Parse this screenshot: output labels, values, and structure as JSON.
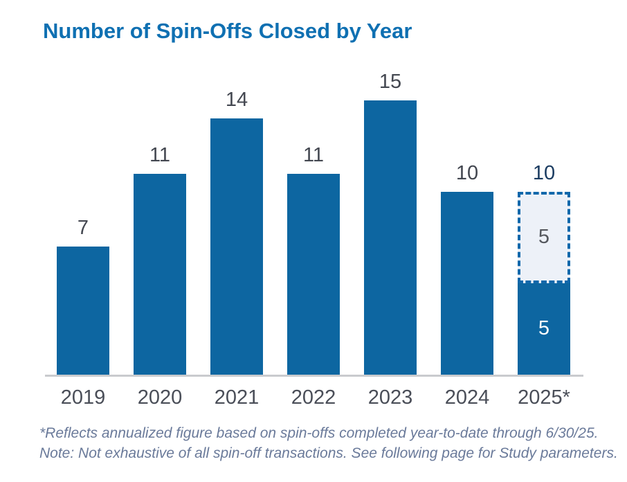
{
  "title": "Number of Spin-Offs Closed by Year",
  "chart_data": {
    "type": "bar",
    "title": "Number of Spin-Offs Closed by Year",
    "categories": [
      "2019",
      "2020",
      "2021",
      "2022",
      "2023",
      "2024",
      "2025*"
    ],
    "values": [
      7,
      11,
      14,
      11,
      15,
      10,
      10
    ],
    "xlabel": "",
    "ylabel": "",
    "ylim": [
      0,
      16
    ],
    "grid": false,
    "legend": false,
    "bars": [
      {
        "category": "2019",
        "label": "7",
        "label_style": "gray",
        "segments": [
          {
            "value": 7,
            "style": "solid"
          }
        ]
      },
      {
        "category": "2020",
        "label": "11",
        "label_style": "gray",
        "segments": [
          {
            "value": 11,
            "style": "solid"
          }
        ]
      },
      {
        "category": "2021",
        "label": "14",
        "label_style": "gray",
        "segments": [
          {
            "value": 14,
            "style": "solid"
          }
        ]
      },
      {
        "category": "2022",
        "label": "11",
        "label_style": "gray",
        "segments": [
          {
            "value": 11,
            "style": "solid"
          }
        ]
      },
      {
        "category": "2023",
        "label": "15",
        "label_style": "gray",
        "segments": [
          {
            "value": 15,
            "style": "solid"
          }
        ]
      },
      {
        "category": "2024",
        "label": "10",
        "label_style": "gray",
        "segments": [
          {
            "value": 10,
            "style": "solid"
          }
        ]
      },
      {
        "category": "2025*",
        "label": "10",
        "label_style": "navy",
        "segments": [
          {
            "value": 5,
            "style": "solid",
            "label": "5"
          },
          {
            "value": 5,
            "style": "dashed",
            "label": "5"
          }
        ]
      }
    ]
  },
  "colors": {
    "bar_blue": "#0d66a1",
    "dash_border": "#1168ab",
    "dash_fill": "#edf1f8",
    "title_blue": "#0f70b2",
    "label_gray": "#434750",
    "label_navy": "#1b3c61",
    "axis_gray": "#4a4e58",
    "footnote_slate": "#6a7a9a",
    "baseline_gray": "#c9cbce"
  },
  "footnote": {
    "line1": "*Reflects annualized figure based on spin-offs completed year-to-date through 6/30/25.",
    "line2": "Note: Not exhaustive of all spin-off transactions. See following page for Study parameters."
  }
}
